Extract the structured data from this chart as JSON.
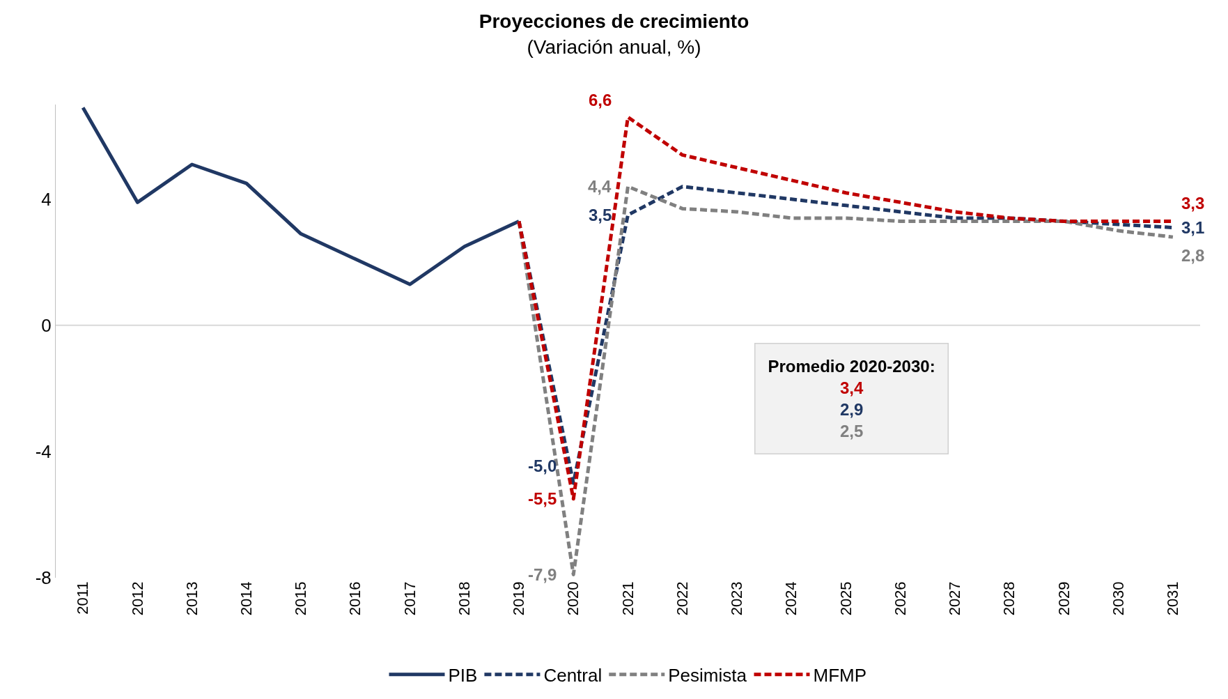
{
  "chart_data": {
    "type": "line",
    "title": "Proyecciones de crecimiento",
    "subtitle": "(Variación anual, %)",
    "categories": [
      "2011",
      "2012",
      "2013",
      "2014",
      "2015",
      "2016",
      "2017",
      "2018",
      "2019",
      "2020",
      "2021",
      "2022",
      "2023",
      "2024",
      "2025",
      "2026",
      "2027",
      "2028",
      "2029",
      "2030",
      "2031"
    ],
    "series": [
      {
        "name": "PIB",
        "color": "#203864",
        "line_style": "solid",
        "values": [
          6.9,
          3.9,
          5.1,
          4.5,
          2.9,
          2.1,
          1.3,
          2.5,
          3.3,
          null,
          null,
          null,
          null,
          null,
          null,
          null,
          null,
          null,
          null,
          null,
          null
        ],
        "value_labels": [
          null,
          null,
          null,
          null,
          null,
          null,
          null,
          null,
          null,
          null,
          null,
          null,
          null,
          null,
          null,
          null,
          null,
          null,
          null,
          null,
          null
        ]
      },
      {
        "name": "Central",
        "color": "#203864",
        "line_style": "dashed",
        "values": [
          null,
          null,
          null,
          null,
          null,
          null,
          null,
          null,
          3.3,
          -5.0,
          3.5,
          4.4,
          4.2,
          4.0,
          3.8,
          3.6,
          3.4,
          3.4,
          3.3,
          3.2,
          3.1
        ],
        "value_labels": [
          null,
          null,
          null,
          null,
          null,
          null,
          null,
          null,
          null,
          "-5,0",
          "3,5",
          null,
          null,
          null,
          null,
          null,
          null,
          null,
          null,
          null,
          "3,1"
        ]
      },
      {
        "name": "Pesimista",
        "color": "#808080",
        "line_style": "dashed",
        "values": [
          null,
          null,
          null,
          null,
          null,
          null,
          null,
          null,
          3.3,
          -7.9,
          4.4,
          3.7,
          3.6,
          3.4,
          3.4,
          3.3,
          3.3,
          3.3,
          3.3,
          3.0,
          2.8
        ],
        "value_labels": [
          null,
          null,
          null,
          null,
          null,
          null,
          null,
          null,
          null,
          "-7,9",
          "4,4",
          null,
          null,
          null,
          null,
          null,
          null,
          null,
          null,
          null,
          "2,8"
        ]
      },
      {
        "name": "MFMP",
        "color": "#c00000",
        "line_style": "dashed",
        "values": [
          null,
          null,
          null,
          null,
          null,
          null,
          null,
          null,
          3.3,
          -5.5,
          6.6,
          5.4,
          5.0,
          4.6,
          4.2,
          3.9,
          3.6,
          3.4,
          3.3,
          3.3,
          3.3
        ],
        "value_labels": [
          null,
          null,
          null,
          null,
          null,
          null,
          null,
          null,
          null,
          "-5,5",
          "6,6",
          null,
          null,
          null,
          null,
          null,
          null,
          null,
          null,
          null,
          "3,3"
        ]
      }
    ],
    "ylim": [
      -8,
      7
    ],
    "yticks": [
      -8,
      -4,
      0,
      4
    ],
    "ref_lines": [
      {
        "axis": "y",
        "value": 0,
        "color": "#d9d9d9"
      }
    ],
    "annotations": [
      "Promedio 2020-2030:",
      "3,4",
      "2,9",
      "2,5"
    ],
    "legend": "bottom",
    "grid": false
  }
}
